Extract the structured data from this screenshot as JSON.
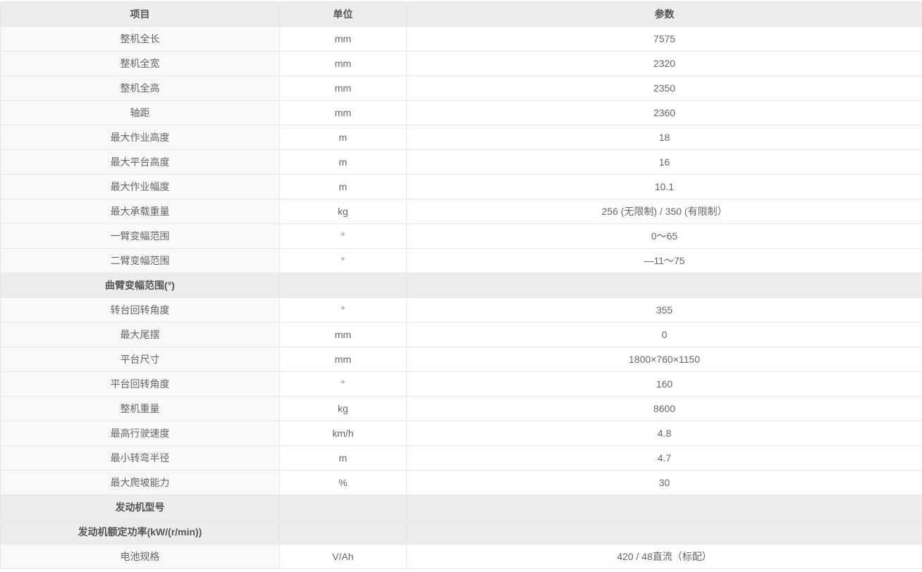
{
  "colors": {
    "header_bg": "#ececec",
    "section_bg": "#ececec",
    "item_col_bg": "#f8f8f8",
    "cell_bg": "#ffffff",
    "border": "#e7e7e7",
    "text": "#666666",
    "bold_text": "#555555"
  },
  "table": {
    "headers": [
      "项目",
      "单位",
      "参数"
    ],
    "rows": [
      {
        "type": "data",
        "item": "整机全长",
        "unit": "mm",
        "value": "7575"
      },
      {
        "type": "data",
        "item": "整机全宽",
        "unit": "mm",
        "value": "2320"
      },
      {
        "type": "data",
        "item": "整机全高",
        "unit": "mm",
        "value": "2350"
      },
      {
        "type": "data",
        "item": "轴距",
        "unit": "mm",
        "value": "2360"
      },
      {
        "type": "data",
        "item": "最大作业高度",
        "unit": "m",
        "value": "18"
      },
      {
        "type": "data",
        "item": "最大平台高度",
        "unit": "m",
        "value": "16"
      },
      {
        "type": "data",
        "item": "最大作业幅度",
        "unit": "m",
        "value": "10.1"
      },
      {
        "type": "data",
        "item": "最大承载重量",
        "unit": "kg",
        "value": "256 (无限制) / 350 (有限制）"
      },
      {
        "type": "data",
        "item": "一臂变幅范围",
        "unit": "°",
        "value": "0～65"
      },
      {
        "type": "data",
        "item": "二臂变幅范围",
        "unit": "°",
        "value": "—11～75"
      },
      {
        "type": "section",
        "item": "曲臂变幅范围(°)",
        "unit": "",
        "value": ""
      },
      {
        "type": "data",
        "item": "转台回转角度",
        "unit": "°",
        "value": "355"
      },
      {
        "type": "data",
        "item": "最大尾摆",
        "unit": "mm",
        "value": "0"
      },
      {
        "type": "data",
        "item": "平台尺寸",
        "unit": "mm",
        "value": "1800×760×1150"
      },
      {
        "type": "data",
        "item": "平台回转角度",
        "unit": "°",
        "value": "160"
      },
      {
        "type": "data",
        "item": "整机重量",
        "unit": "kg",
        "value": "8600"
      },
      {
        "type": "data",
        "item": "最高行驶速度",
        "unit": "km/h",
        "value": "4.8"
      },
      {
        "type": "data",
        "item": "最小转弯半径",
        "unit": "m",
        "value": "4.7"
      },
      {
        "type": "data",
        "item": "最大爬坡能力",
        "unit": "%",
        "value": "30"
      },
      {
        "type": "section",
        "item": "发动机型号",
        "unit": "",
        "value": ""
      },
      {
        "type": "section",
        "item": "发动机额定功率(kW/(r/min))",
        "unit": "",
        "value": ""
      },
      {
        "type": "data",
        "item": "电池规格",
        "unit": "V/Ah",
        "value": "420 / 48直流（标配）"
      }
    ]
  }
}
